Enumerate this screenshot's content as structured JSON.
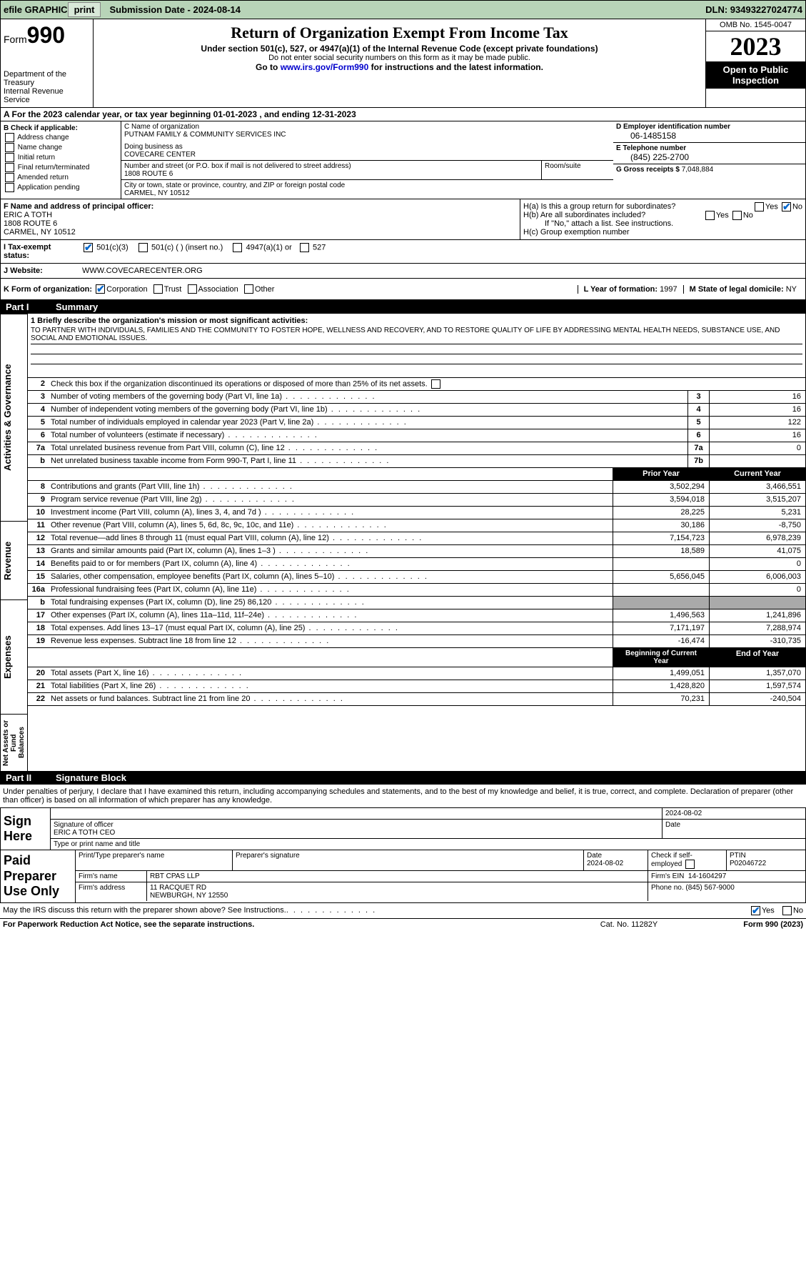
{
  "topbar": {
    "efile_label": "efile GRAPHIC",
    "print_btn": "print",
    "submission_label": "Submission Date - 2024-08-14",
    "dln": "DLN: 93493227024774"
  },
  "header": {
    "form_label": "Form",
    "form_number": "990",
    "dept": "Department of the Treasury\nInternal Revenue Service",
    "title": "Return of Organization Exempt From Income Tax",
    "subtitle": "Under section 501(c), 527, or 4947(a)(1) of the Internal Revenue Code (except private foundations)",
    "note1": "Do not enter social security numbers on this form as it may be made public.",
    "note2_pre": "Go to ",
    "note2_link": "www.irs.gov/Form990",
    "note2_post": " for instructions and the latest information.",
    "omb": "OMB No. 1545-0047",
    "year": "2023",
    "open_public": "Open to Public Inspection"
  },
  "period": "A For the 2023 calendar year, or tax year beginning 01-01-2023   , and ending 12-31-2023",
  "section_b": {
    "label": "B Check if applicable:",
    "opts": [
      "Address change",
      "Name change",
      "Initial return",
      "Final return/terminated",
      "Amended return",
      "Application pending"
    ]
  },
  "section_c": {
    "name_lbl": "C Name of organization",
    "name": "PUTNAM FAMILY & COMMUNITY SERVICES INC",
    "dba_lbl": "Doing business as",
    "dba": "COVECARE CENTER",
    "street_lbl": "Number and street (or P.O. box if mail is not delivered to street address)",
    "street": "1808 ROUTE 6",
    "room_lbl": "Room/suite",
    "city_lbl": "City or town, state or province, country, and ZIP or foreign postal code",
    "city": "CARMEL, NY  10512"
  },
  "section_d": {
    "ein_lbl": "D Employer identification number",
    "ein": "06-1485158",
    "phone_lbl": "E Telephone number",
    "phone": "(845) 225-2700",
    "gross_lbl": "G Gross receipts $",
    "gross": "7,048,884"
  },
  "officer": {
    "label": "F  Name and address of principal officer:",
    "name": "ERIC A TOTH",
    "addr1": "1808 ROUTE 6",
    "addr2": "CARMEL, NY  10512"
  },
  "h": {
    "ha": "H(a)  Is this a group return for subordinates?",
    "hb": "H(b)  Are all subordinates included?",
    "hb_note": "If \"No,\" attach a list. See instructions.",
    "hc": "H(c)  Group exemption number",
    "yes": "Yes",
    "no": "No"
  },
  "tax_status": {
    "label": "I  Tax-exempt status:",
    "opt1": "501(c)(3)",
    "opt2": "501(c) (  ) (insert no.)",
    "opt3": "4947(a)(1) or",
    "opt4": "527"
  },
  "website": {
    "label": "J  Website:",
    "value": "WWW.COVECARECENTER.ORG"
  },
  "k_org": {
    "label": "K Form of organization:",
    "opts": [
      "Corporation",
      "Trust",
      "Association",
      "Other"
    ],
    "l_label": "L Year of formation:",
    "l_val": "1997",
    "m_label": "M State of legal domicile:",
    "m_val": "NY"
  },
  "part1": {
    "num": "Part I",
    "title": "Summary"
  },
  "mission": {
    "label": "1  Briefly describe the organization's mission or most significant activities:",
    "text": "TO PARTNER WITH INDIVIDUALS, FAMILIES AND THE COMMUNITY TO FOSTER HOPE, WELLNESS AND RECOVERY, AND TO RESTORE QUALITY OF LIFE BY ADDRESSING MENTAL HEALTH NEEDS, SUBSTANCE USE, AND SOCIAL AND EMOTIONAL ISSUES."
  },
  "line2": "Check this box       if the organization discontinued its operations or disposed of more than 25% of its net assets.",
  "gov_lines": [
    {
      "n": "3",
      "d": "Number of voting members of the governing body (Part VI, line 1a)",
      "box": "3",
      "v": "16"
    },
    {
      "n": "4",
      "d": "Number of independent voting members of the governing body (Part VI, line 1b)",
      "box": "4",
      "v": "16"
    },
    {
      "n": "5",
      "d": "Total number of individuals employed in calendar year 2023 (Part V, line 2a)",
      "box": "5",
      "v": "122"
    },
    {
      "n": "6",
      "d": "Total number of volunteers (estimate if necessary)",
      "box": "6",
      "v": "16"
    },
    {
      "n": "7a",
      "d": "Total unrelated business revenue from Part VIII, column (C), line 12",
      "box": "7a",
      "v": "0"
    },
    {
      "n": "b",
      "d": "Net unrelated business taxable income from Form 990-T, Part I, line 11",
      "box": "7b",
      "v": ""
    }
  ],
  "col_hdrs": {
    "py": "Prior Year",
    "cy": "Current Year"
  },
  "rev_lines": [
    {
      "n": "8",
      "d": "Contributions and grants (Part VIII, line 1h)",
      "py": "3,502,294",
      "cy": "3,466,551"
    },
    {
      "n": "9",
      "d": "Program service revenue (Part VIII, line 2g)",
      "py": "3,594,018",
      "cy": "3,515,207"
    },
    {
      "n": "10",
      "d": "Investment income (Part VIII, column (A), lines 3, 4, and 7d )",
      "py": "28,225",
      "cy": "5,231"
    },
    {
      "n": "11",
      "d": "Other revenue (Part VIII, column (A), lines 5, 6d, 8c, 9c, 10c, and 11e)",
      "py": "30,186",
      "cy": "-8,750"
    },
    {
      "n": "12",
      "d": "Total revenue—add lines 8 through 11 (must equal Part VIII, column (A), line 12)",
      "py": "7,154,723",
      "cy": "6,978,239"
    }
  ],
  "exp_lines": [
    {
      "n": "13",
      "d": "Grants and similar amounts paid (Part IX, column (A), lines 1–3 )",
      "py": "18,589",
      "cy": "41,075"
    },
    {
      "n": "14",
      "d": "Benefits paid to or for members (Part IX, column (A), line 4)",
      "py": "",
      "cy": "0"
    },
    {
      "n": "15",
      "d": "Salaries, other compensation, employee benefits (Part IX, column (A), lines 5–10)",
      "py": "5,656,045",
      "cy": "6,006,003"
    },
    {
      "n": "16a",
      "d": "Professional fundraising fees (Part IX, column (A), line 11e)",
      "py": "",
      "cy": "0"
    },
    {
      "n": "b",
      "d": "Total fundraising expenses (Part IX, column (D), line 25) 86,120",
      "py": "grey",
      "cy": "grey"
    },
    {
      "n": "17",
      "d": "Other expenses (Part IX, column (A), lines 11a–11d, 11f–24e)",
      "py": "1,496,563",
      "cy": "1,241,896"
    },
    {
      "n": "18",
      "d": "Total expenses. Add lines 13–17 (must equal Part IX, column (A), line 25)",
      "py": "7,171,197",
      "cy": "7,288,974"
    },
    {
      "n": "19",
      "d": "Revenue less expenses. Subtract line 18 from line 12",
      "py": "-16,474",
      "cy": "-310,735"
    }
  ],
  "col_hdrs2": {
    "py": "Beginning of Current Year",
    "cy": "End of Year"
  },
  "na_lines": [
    {
      "n": "20",
      "d": "Total assets (Part X, line 16)",
      "py": "1,499,051",
      "cy": "1,357,070"
    },
    {
      "n": "21",
      "d": "Total liabilities (Part X, line 26)",
      "py": "1,428,820",
      "cy": "1,597,574"
    },
    {
      "n": "22",
      "d": "Net assets or fund balances. Subtract line 21 from line 20",
      "py": "70,231",
      "cy": "-240,504"
    }
  ],
  "side_labels": {
    "gov": "Activities & Governance",
    "rev": "Revenue",
    "exp": "Expenses",
    "na": "Net Assets or Fund Balances"
  },
  "part2": {
    "num": "Part II",
    "title": "Signature Block"
  },
  "sig_intro": "Under penalties of perjury, I declare that I have examined this return, including accompanying schedules and statements, and to the best of my knowledge and belief, it is true, correct, and complete. Declaration of preparer (other than officer) is based on all information of which preparer has any knowledge.",
  "sign": {
    "label": "Sign Here",
    "date": "2024-08-02",
    "sig_lbl": "Signature of officer",
    "name": "ERIC A TOTH  CEO",
    "type_lbl": "Type or print name and title",
    "date_lbl": "Date"
  },
  "prep": {
    "label": "Paid Preparer Use Only",
    "name_lbl": "Print/Type preparer's name",
    "sig_lbl": "Preparer's signature",
    "date_lbl": "Date",
    "date": "2024-08-02",
    "check_lbl": "Check        if self-employed",
    "ptin_lbl": "PTIN",
    "ptin": "P02046722",
    "firm_name_lbl": "Firm's name",
    "firm_name": "RBT CPAS LLP",
    "firm_ein_lbl": "Firm's EIN",
    "firm_ein": "14-1604297",
    "firm_addr_lbl": "Firm's address",
    "firm_addr": "11 RACQUET RD\nNEWBURGH, NY  12550",
    "phone_lbl": "Phone no.",
    "phone": "(845) 567-9000"
  },
  "discuss": {
    "text": "May the IRS discuss this return with the preparer shown above? See Instructions.",
    "yes": "Yes",
    "no": "No"
  },
  "footer": {
    "left": "For Paperwork Reduction Act Notice, see the separate instructions.",
    "mid": "Cat. No. 11282Y",
    "right": "Form 990 (2023)"
  }
}
